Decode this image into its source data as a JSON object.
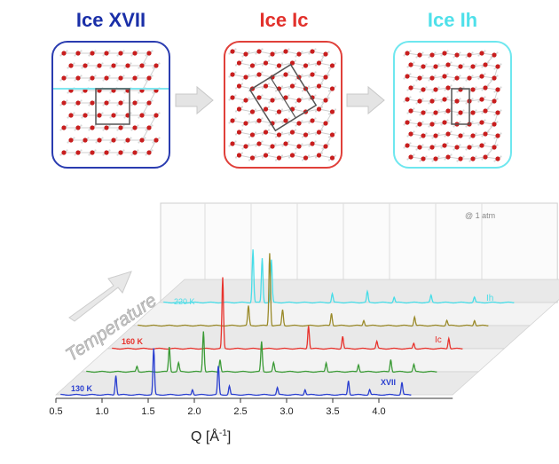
{
  "panels": [
    {
      "title": "Ice XVII",
      "color": "#1a2fa8"
    },
    {
      "title": "Ice Ic",
      "color": "#e2312c"
    },
    {
      "title": "Ice Ih",
      "color": "#4fe0ea"
    }
  ],
  "plot": {
    "note": "@ 1 atm",
    "axis_label": "Q [Å⁻¹]",
    "axis_label_main": "Q [Å",
    "axis_label_sup": "-1",
    "axis_label_end": "]",
    "temperature_label": "Temperature",
    "ticks": [
      "0.5",
      "1.0",
      "1.5",
      "2.0",
      "2.5",
      "3.0",
      "3.5",
      "4.0"
    ],
    "traces": [
      {
        "temp": "130 K",
        "phase": "XVII",
        "color": "#2a3fd0"
      },
      {
        "temp": "",
        "phase": "",
        "color": "#3a9a35"
      },
      {
        "temp": "160 K",
        "phase": "Ic",
        "color": "#e8322c"
      },
      {
        "temp": "",
        "phase": "",
        "color": "#9a8a2a"
      },
      {
        "temp": "220 K",
        "phase": "Ih",
        "color": "#47dde8"
      }
    ]
  }
}
